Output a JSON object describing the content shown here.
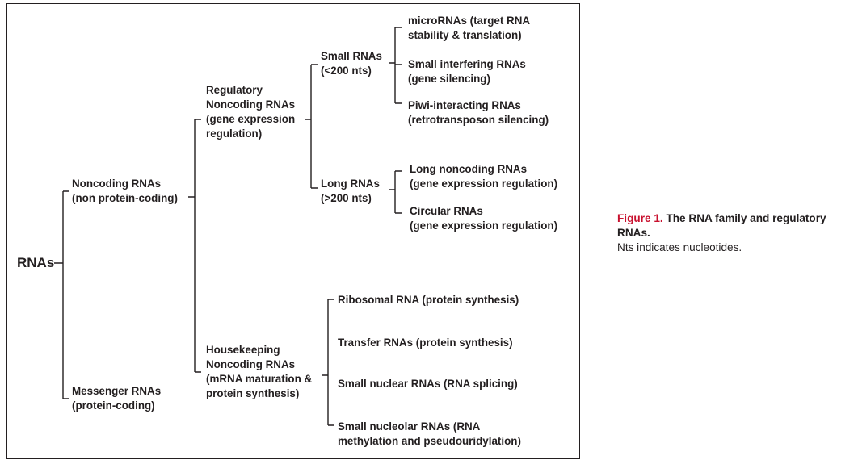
{
  "diagram": {
    "root": "RNAs",
    "noncoding": "Noncoding RNAs\n(non protein-coding)",
    "messenger": "Messenger RNAs\n(protein-coding)",
    "regulatory": "Regulatory\nNoncoding RNAs\n(gene expression\nregulation)",
    "housekeeping": "Housekeeping\nNoncoding RNAs\n(mRNA maturation &\nprotein synthesis)",
    "small": "Small RNAs\n(<200 nts)",
    "long": "Long RNAs\n(>200 nts)",
    "mirna": "microRNAs (target RNA\nstability & translation)",
    "sirna": "Small interfering RNAs\n(gene silencing)",
    "pirna": "Piwi-interacting RNAs\n(retrotransposon silencing)",
    "lncrna": "Long noncoding RNAs\n(gene expression regulation)",
    "circrna": "Circular RNAs\n(gene expression regulation)",
    "rrna": "Ribosomal RNA (protein synthesis)",
    "trna": "Transfer RNAs (protein synthesis)",
    "snrna": "Small nuclear RNAs (RNA splicing)",
    "snorna": "Small nucleolar RNAs (RNA\nmethylation and pseudouridylation)"
  },
  "caption": {
    "label": "Figure 1.",
    "title": "The RNA family and regulatory RNAs.",
    "note": "Nts indicates nucleotides."
  },
  "colors": {
    "text": "#231f20",
    "caption_label": "#c8102e"
  }
}
